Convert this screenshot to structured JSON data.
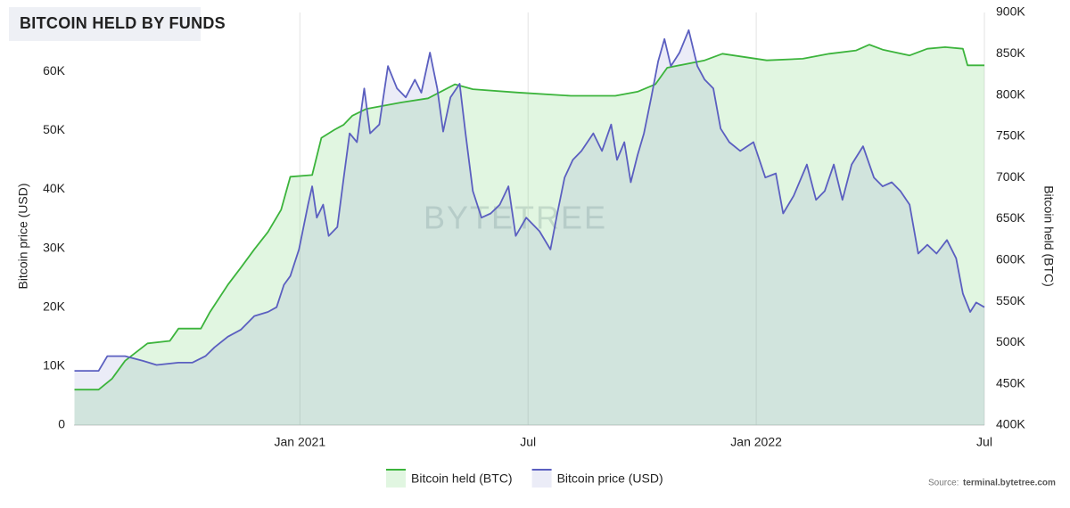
{
  "chart_data": {
    "type": "area",
    "title": "BITCOIN HELD BY FUNDS",
    "ylabel": "Bitcoin price (USD)",
    "y2label": "Bitcoin held (BTC)",
    "watermark": "BYTETREE",
    "source_label": "Source:",
    "source": "terminal.bytetree.com",
    "xlim": [
      2020.505,
      2022.5
    ],
    "xticks": [
      {
        "value": 2021,
        "label": "Jan 2021"
      },
      {
        "value": 2021.5,
        "label": "Jul"
      },
      {
        "value": 2022,
        "label": "Jan 2022"
      },
      {
        "value": 2022.5,
        "label": "Jul"
      }
    ],
    "xgrid": true,
    "ylim": [
      0,
      70000
    ],
    "yticks": [
      0,
      {
        "value": 10000,
        "label": "10K"
      },
      {
        "value": 20000,
        "label": "20K"
      },
      {
        "value": 30000,
        "label": "30K"
      },
      {
        "value": 40000,
        "label": "40K"
      },
      {
        "value": 50000,
        "label": "50K"
      },
      {
        "value": 60000,
        "label": "60K"
      }
    ],
    "y2lim": [
      400000,
      900000
    ],
    "y2ticks": [
      {
        "value": 400000,
        "label": "400K"
      },
      {
        "value": 450000,
        "label": "450K"
      },
      {
        "value": 500000,
        "label": "500K"
      },
      {
        "value": 550000,
        "label": "550K"
      },
      {
        "value": 600000,
        "label": "600K"
      },
      {
        "value": 650000,
        "label": "650K"
      },
      {
        "value": 700000,
        "label": "700K"
      },
      {
        "value": 750000,
        "label": "750K"
      },
      {
        "value": 800000,
        "label": "800K"
      },
      {
        "value": 850000,
        "label": "850K"
      },
      {
        "value": 900000,
        "label": "900K"
      }
    ],
    "legend": "bottom",
    "series": [
      {
        "name": "Bitcoin held (BTC)",
        "color": "#3cb43c",
        "fill": "rgba(120,215,120,0.22)",
        "axis": "y2",
        "x": [
          2020.506,
          2020.559,
          2020.588,
          2020.617,
          2020.666,
          2020.715,
          2020.734,
          2020.783,
          2020.803,
          2020.842,
          2020.871,
          2020.9,
          2020.93,
          2020.959,
          2020.979,
          2021.027,
          2021.047,
          2021.076,
          2021.096,
          2021.115,
          2021.145,
          2021.223,
          2021.281,
          2021.34,
          2021.379,
          2021.477,
          2021.594,
          2021.691,
          2021.74,
          2021.779,
          2021.805,
          2021.887,
          2021.926,
          2022.023,
          2022.102,
          2022.16,
          2022.219,
          2022.248,
          2022.277,
          2022.336,
          2022.375,
          2022.414,
          2022.453,
          2022.463,
          2022.5
        ],
        "values": [
          443000,
          443000,
          456000,
          478000,
          499000,
          502000,
          517000,
          517000,
          537000,
          570000,
          591000,
          613000,
          634000,
          661000,
          701000,
          703000,
          748000,
          758000,
          764000,
          775000,
          783000,
          791000,
          796000,
          813000,
          807000,
          803000,
          799000,
          799000,
          804000,
          813000,
          833000,
          842000,
          850000,
          842000,
          844000,
          850000,
          854000,
          861000,
          855000,
          848000,
          856000,
          858000,
          856000,
          836000,
          836000
        ]
      },
      {
        "name": "Bitcoin price (USD)",
        "color": "#5b5fc0",
        "fill": "rgba(110,120,200,0.14)",
        "axis": "y",
        "x": [
          2020.506,
          2020.559,
          2020.578,
          2020.617,
          2020.656,
          2020.686,
          2020.734,
          2020.764,
          2020.793,
          2020.813,
          2020.842,
          2020.871,
          2020.9,
          2020.93,
          2020.949,
          2020.965,
          2020.979,
          2020.998,
          2021.018,
          2021.027,
          2021.037,
          2021.051,
          2021.063,
          2021.082,
          2021.096,
          2021.109,
          2021.125,
          2021.141,
          2021.154,
          2021.174,
          2021.193,
          2021.213,
          2021.232,
          2021.252,
          2021.266,
          2021.285,
          2021.301,
          2021.314,
          2021.33,
          2021.35,
          2021.363,
          2021.379,
          2021.398,
          2021.418,
          2021.438,
          2021.457,
          2021.473,
          2021.496,
          2021.525,
          2021.549,
          2021.564,
          2021.58,
          2021.598,
          2021.617,
          2021.643,
          2021.662,
          2021.682,
          2021.695,
          2021.711,
          2021.725,
          2021.74,
          2021.754,
          2021.77,
          2021.785,
          2021.799,
          2021.813,
          2021.832,
          2021.852,
          2021.871,
          2021.887,
          2021.906,
          2021.922,
          2021.941,
          2021.965,
          2021.994,
          2022.02,
          2022.043,
          2022.059,
          2022.082,
          2022.111,
          2022.131,
          2022.15,
          2022.17,
          2022.189,
          2022.209,
          2022.234,
          2022.258,
          2022.277,
          2022.297,
          2022.316,
          2022.336,
          2022.355,
          2022.375,
          2022.395,
          2022.418,
          2022.438,
          2022.453,
          2022.469,
          2022.482,
          2022.5
        ],
        "values": [
          9200,
          9200,
          11700,
          11700,
          10900,
          10200,
          10600,
          10600,
          11700,
          13200,
          15000,
          16200,
          18500,
          19200,
          20000,
          23800,
          25300,
          29800,
          37400,
          40500,
          35200,
          37400,
          32100,
          33600,
          42000,
          49500,
          48000,
          57100,
          49500,
          51000,
          60900,
          57100,
          55600,
          58600,
          56400,
          63200,
          57100,
          49800,
          55600,
          57900,
          49500,
          39700,
          35200,
          35900,
          37400,
          40500,
          32100,
          35200,
          32900,
          29800,
          35900,
          42000,
          45000,
          46500,
          49500,
          46500,
          51000,
          45000,
          48000,
          41200,
          45800,
          49500,
          55600,
          61700,
          65500,
          60900,
          63200,
          67000,
          60900,
          58600,
          57100,
          50300,
          48000,
          46500,
          48000,
          42000,
          42700,
          35900,
          38900,
          44200,
          38200,
          39700,
          44200,
          38200,
          44200,
          47300,
          42000,
          40500,
          41200,
          39700,
          37400,
          29100,
          30600,
          29100,
          31400,
          28300,
          22300,
          19200,
          20800,
          20000
        ]
      }
    ]
  }
}
